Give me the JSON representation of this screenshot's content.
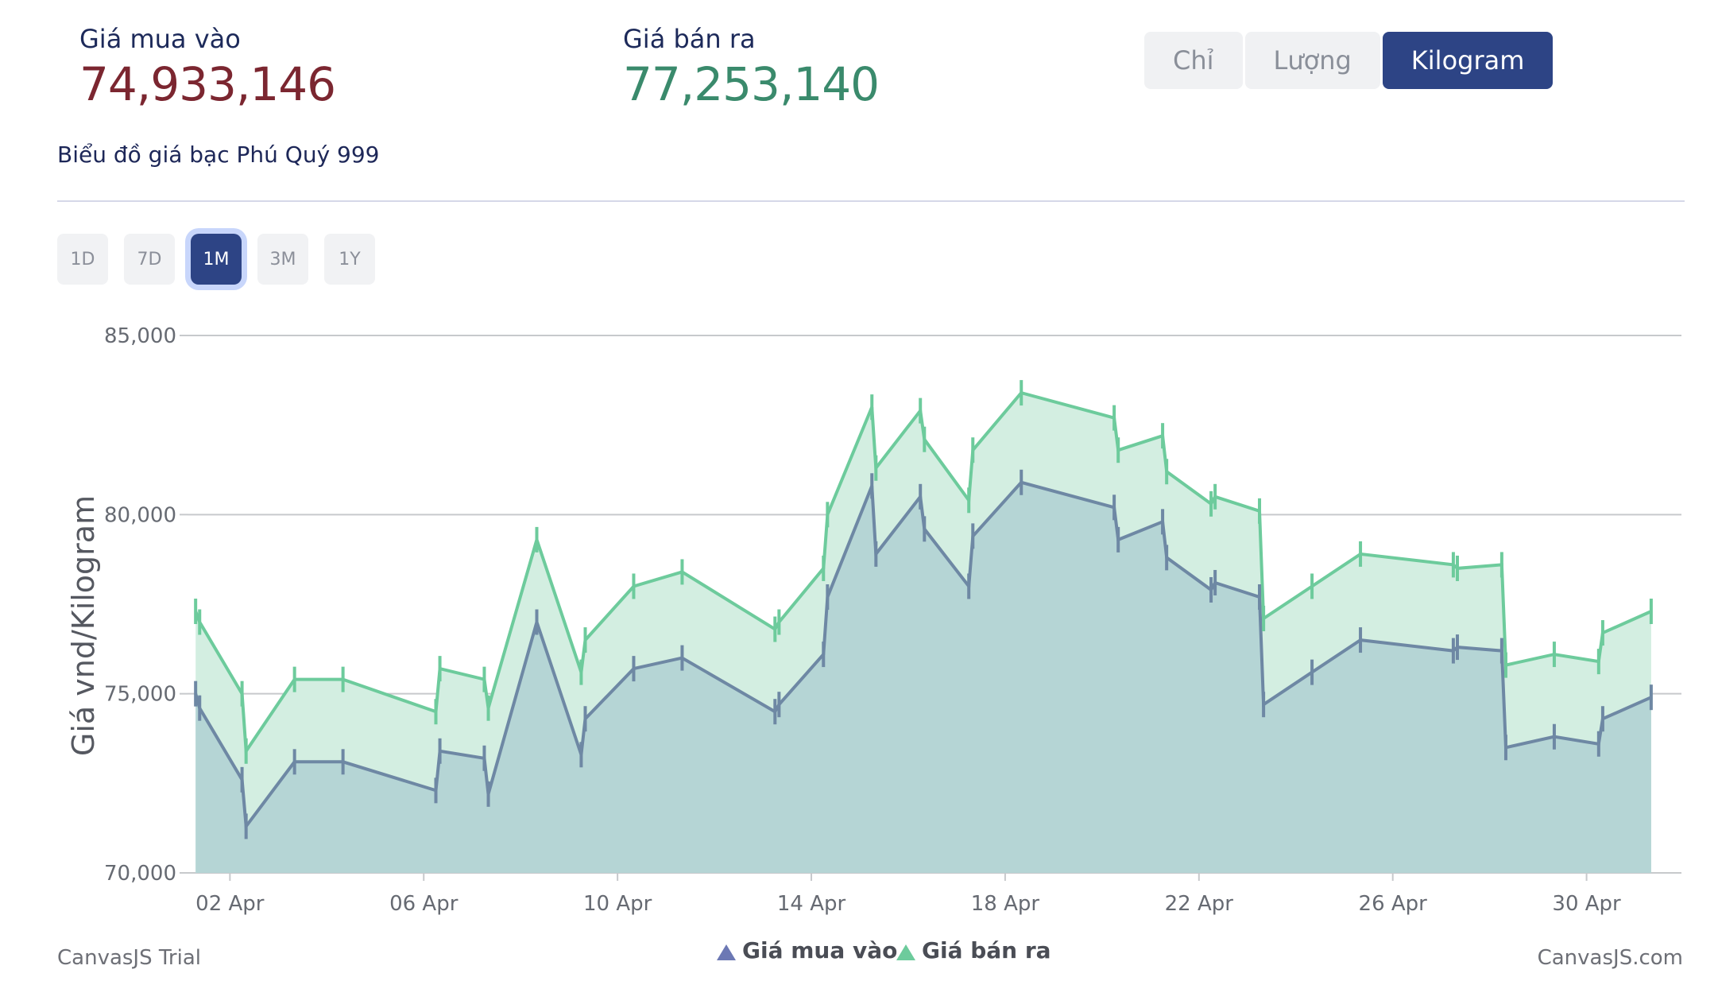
{
  "header": {
    "buy_label": "Giá mua vào",
    "buy_value": "74,933,146",
    "sell_label": "Giá bán ra",
    "sell_value": "77,253,140"
  },
  "unit_toggle": {
    "options": [
      "Chỉ",
      "Lượng",
      "Kilogram"
    ],
    "selected": "Kilogram"
  },
  "subtitle": "Biểu đồ giá bạc Phú Quý 999",
  "range_tabs": {
    "options": [
      "1D",
      "7D",
      "1M",
      "3M",
      "1Y"
    ],
    "selected": "1M"
  },
  "credits": {
    "left": "CanvasJS Trial",
    "right": "CanvasJS.com"
  },
  "colors": {
    "buy": "#6e88a4",
    "buy_fill": "#b5d5d5",
    "sell": "#6dcb9c",
    "sell_fill": "#d3eee1",
    "accent": "#2d4485"
  },
  "chart_data": {
    "type": "area",
    "ylabel": "Giá vnd/Kilogram",
    "ylim": [
      70000,
      85000
    ],
    "yticks": [
      "85,000",
      "80,000",
      "75,000",
      "70,000"
    ],
    "ytick_values": [
      85000,
      80000,
      75000,
      70000
    ],
    "xticks": [
      "02 Apr",
      "06 Apr",
      "10 Apr",
      "14 Apr",
      "18 Apr",
      "22 Apr",
      "26 Apr",
      "30 Apr"
    ],
    "xlim": [
      "2024-04-01T03:00",
      "2024-05-01T23:00"
    ],
    "grid": true,
    "legend_position": "bottom-center",
    "x": [
      "2024-04-01T07:00",
      "2024-04-01T09:00",
      "2024-04-02T06:00",
      "2024-04-02T08:00",
      "2024-04-03T08:00",
      "2024-04-04T08:00",
      "2024-04-06T06:00",
      "2024-04-06T08:00",
      "2024-04-07T06:00",
      "2024-04-07T08:00",
      "2024-04-08T08:00",
      "2024-04-09T06:00",
      "2024-04-09T08:00",
      "2024-04-10T08:00",
      "2024-04-11T08:00",
      "2024-04-13T06:00",
      "2024-04-13T08:00",
      "2024-04-14T06:00",
      "2024-04-14T08:00",
      "2024-04-15T06:00",
      "2024-04-15T08:00",
      "2024-04-16T06:00",
      "2024-04-16T08:00",
      "2024-04-17T06:00",
      "2024-04-17T08:00",
      "2024-04-18T08:00",
      "2024-04-20T06:00",
      "2024-04-20T08:00",
      "2024-04-21T06:00",
      "2024-04-21T08:00",
      "2024-04-22T06:00",
      "2024-04-22T08:00",
      "2024-04-23T06:00",
      "2024-04-23T08:00",
      "2024-04-24T08:00",
      "2024-04-25T08:00",
      "2024-04-27T06:00",
      "2024-04-27T08:00",
      "2024-04-28T06:00",
      "2024-04-28T08:00",
      "2024-04-29T08:00",
      "2024-04-30T06:00",
      "2024-04-30T08:00",
      "2024-05-01T08:00"
    ],
    "series": [
      {
        "name": "Giá bán ra",
        "values": [
          77300,
          77000,
          75000,
          73400,
          75400,
          75400,
          74500,
          75700,
          75400,
          74600,
          79300,
          75600,
          76500,
          78000,
          78400,
          76800,
          77000,
          78500,
          80000,
          83000,
          81300,
          82900,
          82100,
          80400,
          81800,
          83400,
          82700,
          81800,
          82200,
          81200,
          80300,
          80500,
          80100,
          77100,
          78000,
          78900,
          78600,
          78500,
          78600,
          75800,
          76100,
          75900,
          76700,
          77300
        ]
      },
      {
        "name": "Giá mua vào",
        "values": [
          75000,
          74600,
          72600,
          71300,
          73100,
          73100,
          72300,
          73400,
          73200,
          72200,
          77000,
          73300,
          74300,
          75700,
          76000,
          74500,
          74700,
          76100,
          77700,
          80800,
          78900,
          80500,
          79600,
          78000,
          79400,
          80900,
          80200,
          79300,
          79800,
          78800,
          77900,
          78100,
          77700,
          74700,
          75600,
          76500,
          76200,
          76300,
          76200,
          73500,
          73800,
          73600,
          74300,
          74900
        ]
      }
    ]
  }
}
